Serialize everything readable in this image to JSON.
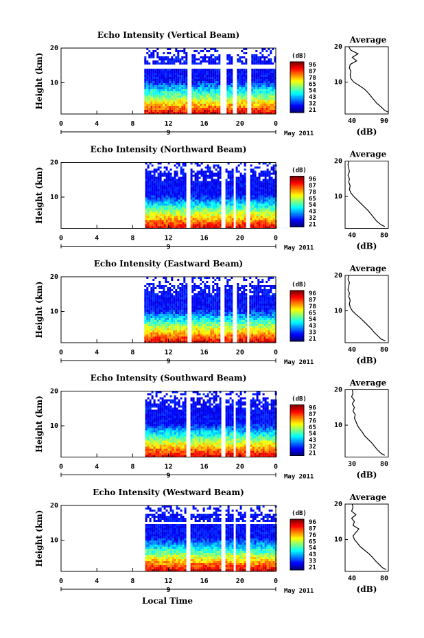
{
  "figure": {
    "xlabel_bottom": "Local Time",
    "date_label": "May 2011",
    "day_label": "9"
  },
  "chart_data": [
    {
      "type": "heatmap",
      "title": "Echo Intensity (Vertical Beam)",
      "ylabel": "Height (km)",
      "xlim": [
        0,
        24
      ],
      "ylim": [
        1,
        20
      ],
      "x_ticks": [
        "0",
        "4",
        "8",
        "12",
        "16",
        "20",
        "0"
      ],
      "y_ticks": [
        "10",
        "20"
      ],
      "colorbar": {
        "label": "(dB)",
        "ticks": [
          "96",
          "87",
          "78",
          "65",
          "54",
          "43",
          "32",
          "21"
        ],
        "range": [
          21,
          96
        ]
      },
      "data_start_hour": 9.3,
      "gaps_hours": [
        [
          14.0,
          14.4
        ],
        [
          17.8,
          18.3
        ],
        [
          19.0,
          19.5
        ],
        [
          20.7,
          21.1
        ]
      ],
      "white_bands_km": [
        [
          14.6,
          15.4
        ],
        [
          8.2,
          8.6
        ]
      ],
      "profile": {
        "title": "Average",
        "xlabel": "(dB)",
        "xlim": [
          30,
          90
        ],
        "x_ticks": [
          "40",
          "90"
        ],
        "y_ticks": [
          "10",
          "20"
        ],
        "height_km": [
          1.5,
          2,
          3,
          4,
          5,
          6,
          7,
          8,
          9,
          10,
          11,
          12,
          13,
          14,
          15,
          16,
          17,
          18,
          19,
          20
        ],
        "values_db": [
          90,
          85,
          80,
          74,
          70,
          66,
          62,
          57,
          50,
          42,
          38,
          37,
          38,
          36,
          37,
          46,
          40,
          48,
          38,
          35
        ]
      }
    },
    {
      "type": "heatmap",
      "title": "Echo Intensity (Northward Beam)",
      "ylabel": "Height (km)",
      "xlim": [
        0,
        24
      ],
      "ylim": [
        1,
        20
      ],
      "x_ticks": [
        "0",
        "4",
        "8",
        "12",
        "16",
        "20",
        "0"
      ],
      "y_ticks": [
        "10",
        "20"
      ],
      "colorbar": {
        "label": "(dB)",
        "ticks": [
          "96",
          "87",
          "78",
          "65",
          "54",
          "43",
          "32",
          "21"
        ],
        "range": [
          21,
          96
        ]
      },
      "data_start_hour": 9.4,
      "gaps_hours": [
        [
          14.0,
          14.4
        ],
        [
          17.8,
          18.2
        ],
        [
          19.1,
          19.5
        ],
        [
          20.6,
          21.1
        ]
      ],
      "white_bands_km": [],
      "profile": {
        "title": "Average",
        "xlabel": "(dB)",
        "xlim": [
          30,
          90
        ],
        "x_ticks": [
          "40",
          "80"
        ],
        "y_ticks": [
          "10",
          "20"
        ],
        "height_km": [
          1.5,
          2,
          3,
          4,
          5,
          6,
          7,
          8,
          9,
          10,
          11,
          12,
          13,
          14,
          15,
          16,
          17,
          18,
          19,
          20
        ],
        "values_db": [
          85,
          80,
          74,
          70,
          66,
          62,
          57,
          52,
          47,
          42,
          38,
          36,
          37,
          35,
          36,
          34,
          36,
          35,
          34,
          35
        ]
      }
    },
    {
      "type": "heatmap",
      "title": "Echo Intensity (Eastward Beam)",
      "ylabel": "Height (km)",
      "xlim": [
        0,
        24
      ],
      "ylim": [
        1,
        20
      ],
      "x_ticks": [
        "0",
        "4",
        "8",
        "12",
        "16",
        "20",
        "0"
      ],
      "y_ticks": [
        "10",
        "20"
      ],
      "colorbar": {
        "label": "(dB)",
        "ticks": [
          "96",
          "87",
          "78",
          "65",
          "54",
          "43",
          "33",
          "21"
        ],
        "range": [
          21,
          96
        ]
      },
      "data_start_hour": 9.3,
      "gaps_hours": [
        [
          14.0,
          14.4
        ],
        [
          17.8,
          18.2
        ],
        [
          19.0,
          19.5
        ],
        [
          20.6,
          21.0
        ]
      ],
      "white_bands_km": [],
      "profile": {
        "title": "Average",
        "xlabel": "(dB)",
        "xlim": [
          30,
          90
        ],
        "x_ticks": [
          "40",
          "80"
        ],
        "y_ticks": [
          "10",
          "20"
        ],
        "height_km": [
          1.5,
          2,
          3,
          4,
          5,
          6,
          7,
          8,
          9,
          10,
          11,
          12,
          13,
          14,
          15,
          16,
          17,
          18,
          19,
          20
        ],
        "values_db": [
          86,
          80,
          75,
          70,
          66,
          61,
          56,
          51,
          45,
          40,
          37,
          36,
          37,
          35,
          36,
          34,
          35,
          36,
          34,
          35
        ]
      }
    },
    {
      "type": "heatmap",
      "title": "Echo Intensity (Southward Beam)",
      "ylabel": "Height (km)",
      "xlim": [
        0,
        24
      ],
      "ylim": [
        1,
        20
      ],
      "x_ticks": [
        "0",
        "4",
        "8",
        "12",
        "16",
        "20",
        "0"
      ],
      "y_ticks": [
        "10",
        "20"
      ],
      "colorbar": {
        "label": "(dB)",
        "ticks": [
          "96",
          "87",
          "76",
          "65",
          "54",
          "43",
          "32",
          "21"
        ],
        "range": [
          21,
          96
        ]
      },
      "data_start_hour": 9.4,
      "gaps_hours": [
        [
          14.0,
          14.4
        ],
        [
          17.8,
          18.2
        ],
        [
          19.1,
          19.5
        ],
        [
          20.6,
          21.1
        ]
      ],
      "white_bands_km": [],
      "profile": {
        "title": "Average",
        "xlabel": "(dB)",
        "xlim": [
          25,
          85
        ],
        "x_ticks": [
          "30",
          "80"
        ],
        "y_ticks": [
          "10",
          "20"
        ],
        "height_km": [
          1.5,
          2,
          3,
          4,
          5,
          6,
          7,
          8,
          9,
          10,
          11,
          12,
          13,
          14,
          15,
          16,
          17,
          18,
          19,
          20
        ],
        "values_db": [
          80,
          75,
          70,
          66,
          62,
          57,
          52,
          49,
          45,
          42,
          40,
          38,
          39,
          36,
          38,
          35,
          38,
          34,
          36,
          35
        ]
      }
    },
    {
      "type": "heatmap",
      "title": "Echo Intensity (Westward Beam)",
      "ylabel": "Height (km)",
      "xlim": [
        0,
        24
      ],
      "ylim": [
        1,
        20
      ],
      "x_ticks": [
        "0",
        "4",
        "8",
        "12",
        "16",
        "20",
        "0"
      ],
      "y_ticks": [
        "10",
        "20"
      ],
      "colorbar": {
        "label": "(dB)",
        "ticks": [
          "96",
          "87",
          "76",
          "65",
          "54",
          "43",
          "33",
          "21"
        ],
        "range": [
          21,
          96
        ]
      },
      "data_start_hour": 9.4,
      "gaps_hours": [
        [
          14.0,
          14.4
        ],
        [
          17.8,
          18.2
        ],
        [
          19.1,
          19.5
        ],
        [
          20.6,
          21.1
        ]
      ],
      "white_bands_km": [
        [
          15.0,
          15.6
        ]
      ],
      "profile": {
        "title": "Average",
        "xlabel": "(dB)",
        "xlim": [
          25,
          85
        ],
        "x_ticks": [
          "40",
          "80"
        ],
        "y_ticks": [
          "10",
          "20"
        ],
        "height_km": [
          1.5,
          2,
          3,
          4,
          5,
          6,
          7,
          8,
          9,
          10,
          11,
          12,
          13,
          14,
          15,
          16,
          17,
          18,
          19,
          20
        ],
        "values_db": [
          82,
          77,
          72,
          67,
          63,
          58,
          52,
          46,
          42,
          38,
          36,
          40,
          44,
          36,
          38,
          34,
          40,
          34,
          36,
          35
        ]
      }
    }
  ]
}
